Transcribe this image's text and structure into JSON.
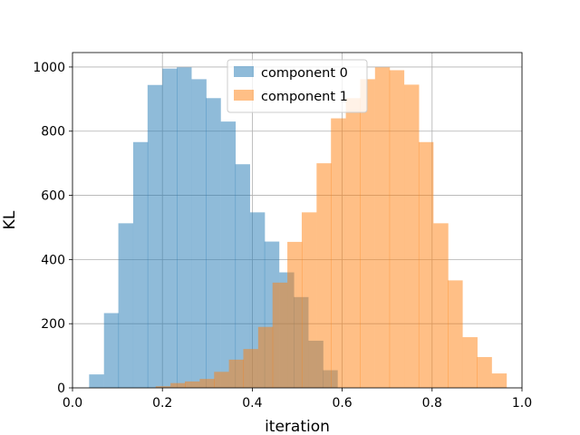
{
  "chart_data": {
    "type": "bar",
    "title": "",
    "xlabel": "iteration",
    "ylabel": "KL",
    "xlim": [
      -0.0,
      1.0
    ],
    "ylim": [
      0,
      1045
    ],
    "grid": true,
    "legend_position": "top-center",
    "x_ticks": [
      0.0,
      0.2,
      0.4,
      0.6,
      0.8,
      1.0
    ],
    "x_tick_labels": [
      "0.0",
      "0.2",
      "0.4",
      "0.6",
      "0.8",
      "1.0"
    ],
    "y_ticks": [
      0,
      200,
      400,
      600,
      800,
      1000
    ],
    "y_tick_labels": [
      "0",
      "200",
      "400",
      "600",
      "800",
      "1000"
    ],
    "series": [
      {
        "name": "component 0",
        "color": "#1f77b4",
        "bin_width": 0.0325,
        "bin_starts": [
          0.037,
          0.07,
          0.102,
          0.135,
          0.167,
          0.2,
          0.232,
          0.265,
          0.297,
          0.33,
          0.362,
          0.395,
          0.427,
          0.46,
          0.492,
          0.525,
          0.557
        ],
        "values": [
          42,
          233,
          513,
          766,
          944,
          995,
          999,
          962,
          903,
          830,
          697,
          547,
          456,
          360,
          283,
          147,
          55
        ]
      },
      {
        "name": "component 1",
        "color": "#ff7f0e",
        "bin_width": 0.0325,
        "bin_starts": [
          0.185,
          0.218,
          0.25,
          0.283,
          0.315,
          0.348,
          0.38,
          0.413,
          0.445,
          0.478,
          0.51,
          0.543,
          0.575,
          0.608,
          0.64,
          0.673,
          0.705,
          0.738,
          0.77,
          0.803,
          0.835,
          0.868,
          0.9,
          0.933
        ],
        "values": [
          5,
          15,
          20,
          28,
          50,
          88,
          121,
          190,
          328,
          455,
          547,
          700,
          840,
          903,
          962,
          999,
          990,
          945,
          766,
          513,
          335,
          158,
          96,
          45
        ]
      }
    ]
  }
}
